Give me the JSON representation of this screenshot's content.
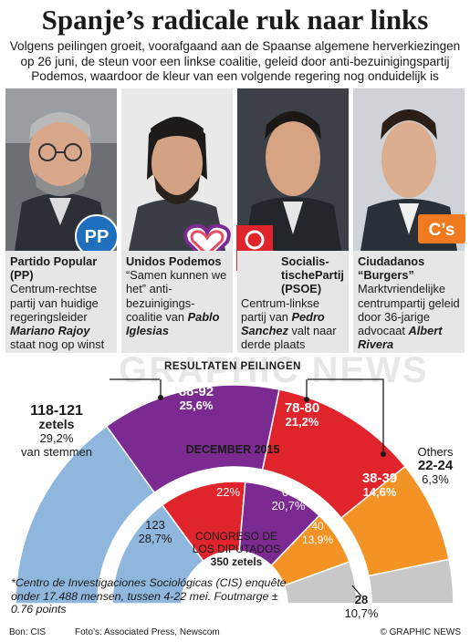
{
  "title": "Spanje’s radicale ruk naar links",
  "subtitle": "Volgens peilingen groeit, voorafgaand aan de Spaanse algemene herverkiezingen op 26 juni, de steun voor een linkse coalitie, geleid door anti-bezuinigingspartij Podemos, waardoor de kleur van een volgende regering nog onduidelijk is",
  "parties": [
    {
      "name": "Partido Popular (PP)",
      "desc_pre": "Centrum-rechtse partij van huidige regeringsleider ",
      "leader": "Mariano Rajoy",
      "desc_post": " staat nog op winst",
      "logo": "PP"
    },
    {
      "name": "Unidos Podemos",
      "desc_pre": "“Samen kunnen we het” anti-bezuinigings-coalitie van ",
      "leader": "Pablo Iglesias",
      "desc_post": ""
    },
    {
      "name": "Socialis-tischePartij (PSOE)",
      "desc_pre": "Centrum-linkse partij van ",
      "leader": "Pedro Sanchez",
      "desc_post": " valt naar derde plaats"
    },
    {
      "name": "Ciudadanos “Burgers”",
      "desc_pre": "Marktvriendelijke centrumpartij geleid door 36-jarige advocaat ",
      "leader": "Albert Rivera",
      "desc_post": "",
      "logo": "C’s"
    }
  ],
  "colors": {
    "pp": "#8fb6dd",
    "podemos": "#7a2a90",
    "psoe": "#e0242c",
    "cs": "#f39325",
    "others": "#c8c8c8"
  },
  "chart_data": {
    "type": "pie",
    "subtype": "semicircle-donut",
    "outer_ring": {
      "label": "RESULTATEN PEILINGEN",
      "series": [
        {
          "name": "PP",
          "range": "118-121",
          "unit": "zetels",
          "percent": "29,2%",
          "note": "van stemmen",
          "value": 29.2
        },
        {
          "name": "Unidos Podemos",
          "range": "88-92",
          "percent": "25,6%",
          "value": 25.6
        },
        {
          "name": "PSOE",
          "range": "78-80",
          "percent": "21,2%",
          "value": 21.2
        },
        {
          "name": "Ciudadanos",
          "range": "38-39",
          "percent": "14,6%",
          "value": 14.6
        },
        {
          "name": "Others",
          "range": "22-24",
          "percent": "6,3%",
          "value": 6.3
        }
      ]
    },
    "inner_ring": {
      "label": "DECEMBER 2015",
      "series": [
        {
          "name": "PP",
          "seats": "123",
          "percent": "28,7%",
          "value": 28.7
        },
        {
          "name": "PSOE",
          "seats": "90",
          "percent": "22%",
          "value": 22
        },
        {
          "name": "Podemos",
          "seats": "69",
          "percent": "20,7%",
          "value": 20.7
        },
        {
          "name": "Ciudadanos",
          "seats": "40",
          "percent": "13,9%",
          "value": 13.9
        },
        {
          "name": "Others",
          "seats": "28",
          "percent": "10,7%",
          "value": 10.7
        }
      ]
    },
    "center": {
      "line1": "CONGRESO DE",
      "line2": "LOS DIPUTADOS",
      "line3": "350 zetels"
    }
  },
  "others_label": "Others",
  "footnote": "*Centro de Investigaciones Sociológicas (CIS) enquête onder 17.488 mensen, tussen 4-22 mei. Foutmarge ± 0.76 points",
  "source": "Bon: CIS",
  "photos": "Foto’s: Associated Press, Newscom",
  "copyright": "© GRAPHIC NEWS",
  "watermark": "GRAPHIC NEWS"
}
